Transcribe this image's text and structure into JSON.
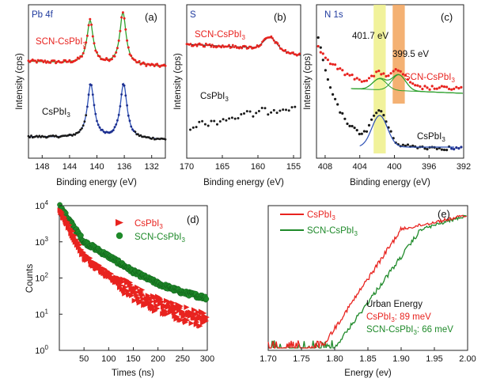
{
  "colors": {
    "red": "#e8231f",
    "green": "#1f8a2a",
    "black": "#1a1a1a",
    "navy": "#1d2f8f",
    "fit_green": "#2ca02c",
    "fit_blue": "#2b4fb5",
    "yellow_band": "#eef08a",
    "orange_band": "#f2a35b",
    "blue_label": "#1f3a9e"
  },
  "chart_data": [
    {
      "panel": "a",
      "panel_label": "(a)",
      "type": "scatter",
      "title": "Pb 4f",
      "xlabel": "Binding energy (eV)",
      "ylabel": "Intensity (cps)",
      "xlim": [
        150,
        130
      ],
      "xticks": [
        148,
        144,
        140,
        136,
        132
      ],
      "series": [
        {
          "name": "SCN-CsPbI3",
          "label": "SCN-CsPbI",
          "label_sub": "3",
          "peaks": [
            {
              "x": 141.0,
              "height": 0.78,
              "width": 0.55
            },
            {
              "x": 136.2,
              "height": 0.95,
              "width": 0.55
            }
          ],
          "baseline": 0.55
        },
        {
          "name": "CsPbI3",
          "label": "CsPbI",
          "label_sub": "3",
          "peaks": [
            {
              "x": 140.9,
              "height": 0.98,
              "width": 0.6
            },
            {
              "x": 136.1,
              "height": 1.0,
              "width": 0.6
            }
          ],
          "baseline": 0.05
        }
      ]
    },
    {
      "panel": "b",
      "panel_label": "(b)",
      "type": "scatter",
      "title": "S",
      "xlabel": "Binding energy (eV)",
      "ylabel": "Intensity (cps)",
      "xlim": [
        170,
        154
      ],
      "xticks": [
        170,
        165,
        160,
        155
      ],
      "series": [
        {
          "name": "SCN-CsPbI3",
          "label": "SCN-CsPbI",
          "label_sub": "3",
          "peak": 158.3
        },
        {
          "name": "CsPbI3",
          "label": "CsPbI",
          "label_sub": "3"
        }
      ]
    },
    {
      "panel": "c",
      "panel_label": "(c)",
      "type": "scatter",
      "title": "N 1s",
      "xlabel": "Binding energy (eV)",
      "ylabel": "Intensity (cps)",
      "xlim": [
        409,
        392
      ],
      "xticks": [
        408,
        404,
        400,
        396,
        392
      ],
      "bands": [
        {
          "x": 401.7,
          "label": "401.7 eV"
        },
        {
          "x": 399.5,
          "label": "399.5 eV"
        }
      ],
      "series": [
        {
          "name": "SCN-CsPbI3",
          "label": "SCN-CsPbI",
          "label_sub": "3"
        },
        {
          "name": "CsPbI3",
          "label": "CsPbI",
          "label_sub": "3"
        }
      ]
    },
    {
      "panel": "d",
      "panel_label": "(d)",
      "type": "scatter",
      "xlabel": "Times (ns)",
      "ylabel": "Counts",
      "xlim": [
        0,
        300
      ],
      "ylim_log10": [
        0,
        4
      ],
      "xticks": [
        50,
        100,
        150,
        200,
        250,
        300
      ],
      "yticks_exp": [
        0,
        1,
        2,
        3,
        4
      ],
      "tick_base": "10",
      "series": [
        {
          "name": "CsPbI3",
          "label": "CsPbI",
          "label_sub": "3",
          "marker": "triangle",
          "decay": [
            [
              0,
              8000
            ],
            [
              50,
              400
            ],
            [
              100,
              120
            ],
            [
              150,
              40
            ],
            [
              200,
              18
            ],
            [
              250,
              10
            ],
            [
              300,
              7
            ]
          ]
        },
        {
          "name": "SCN-CsPbI3",
          "label": "SCN-CsPbI",
          "label_sub": "3",
          "marker": "sphere",
          "decay": [
            [
              0,
              10000
            ],
            [
              50,
              1000
            ],
            [
              100,
              400
            ],
            [
              150,
              150
            ],
            [
              200,
              70
            ],
            [
              250,
              40
            ],
            [
              300,
              28
            ]
          ]
        }
      ]
    },
    {
      "panel": "e",
      "panel_label": "(e)",
      "type": "line",
      "xlabel": "Energy (ev)",
      "xlim": [
        1.7,
        2.0
      ],
      "xticks": [
        "1.70",
        "1.75",
        "1.80",
        "1.85",
        "1.90",
        "1.95",
        "2.00"
      ],
      "series": [
        {
          "name": "CsPbI3",
          "label": "CsPbI",
          "label_sub": "3",
          "onset": 1.78
        },
        {
          "name": "SCN-CsPbI3",
          "label": "SCN-CsPbI",
          "label_sub": "3",
          "onset": 1.8
        }
      ],
      "annotation": {
        "title": "Urban Energy",
        "line1": {
          "pre": "CsPbI",
          "sub": "3",
          "post": ": 89 meV"
        },
        "line2": {
          "pre": "SCN-CsPbI",
          "sub": "3",
          "post": ": 66 meV"
        }
      }
    }
  ]
}
